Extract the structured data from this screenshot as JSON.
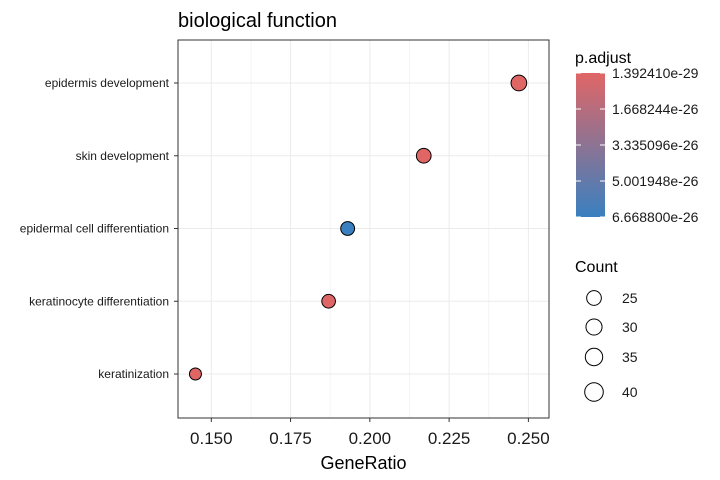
{
  "chart_data": {
    "type": "scatter",
    "title": "biological function",
    "xlabel": "GeneRatio",
    "ylabel": "",
    "xlim": [
      0.1395,
      0.2565
    ],
    "xticks": [
      0.15,
      0.175,
      0.2,
      0.225,
      0.25
    ],
    "xtick_labels": [
      "0.150",
      "0.175",
      "0.200",
      "0.225",
      "0.250"
    ],
    "categories": [
      "epidermis development",
      "skin development",
      "epidermal cell differentiation",
      "keratinocyte differentiation",
      "keratinization"
    ],
    "points": [
      {
        "term": "epidermis development",
        "gene_ratio": 0.247,
        "count": 41,
        "p_adjust": 1.39241e-29
      },
      {
        "term": "skin development",
        "gene_ratio": 0.217,
        "count": 36,
        "p_adjust": 1e-28
      },
      {
        "term": "epidermal cell differentiation",
        "gene_ratio": 0.193,
        "count": 32,
        "p_adjust": 6.6688e-26
      },
      {
        "term": "keratinocyte differentiation",
        "gene_ratio": 0.187,
        "count": 31,
        "p_adjust": 1e-27
      },
      {
        "term": "keratinization",
        "gene_ratio": 0.145,
        "count": 24,
        "p_adjust": 1e-28
      }
    ],
    "grid": true,
    "color_legend": {
      "title": "p.adjust",
      "labels": [
        "1.392410e-29",
        "1.668244e-26",
        "3.335096e-26",
        "5.001948e-26",
        "6.668800e-26"
      ],
      "values": [
        1.39241e-29,
        1.668244e-26,
        3.335096e-26,
        5.001948e-26,
        6.6688e-26
      ],
      "low_color": "#e06666",
      "high_color": "#3a80c0"
    },
    "size_legend": {
      "title": "Count",
      "values": [
        25,
        30,
        35,
        40
      ],
      "labels": [
        "25",
        "30",
        "35",
        "40"
      ]
    },
    "legend_position": "right"
  }
}
